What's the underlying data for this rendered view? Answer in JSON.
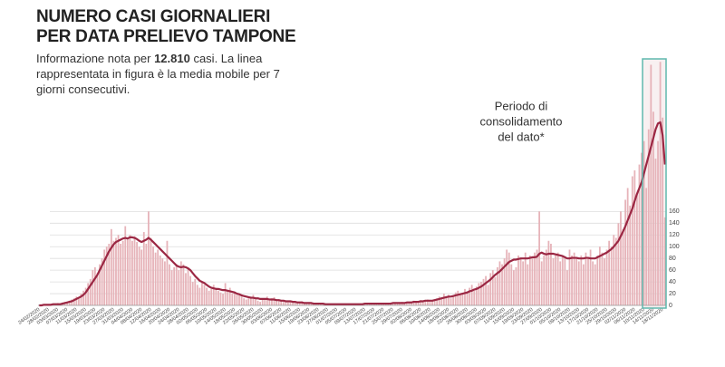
{
  "chart_data": {
    "type": "bar",
    "title": [
      "NUMERO CASI GIORNALIERI",
      "PER DATA PRELIEVO TAMPONE"
    ],
    "subtitle": {
      "before": "Informazione nota per ",
      "bold": "12.810",
      "after": " casi. La linea rappresentata in figura è la media mobile per 7 giorni consecutivi."
    },
    "annotation": [
      "Periodo di",
      "consolidamento",
      "del dato*"
    ],
    "categories": [
      "24/02/2020",
      null,
      null,
      null,
      "28/02/2020",
      null,
      null,
      null,
      "03/03/2020",
      null,
      null,
      null,
      "07/03/2020",
      null,
      null,
      null,
      "11/03/2020",
      null,
      null,
      null,
      "15/03/2020",
      null,
      null,
      null,
      "19/03/2020",
      null,
      null,
      null,
      "23/03/2020",
      null,
      null,
      null,
      "27/03/2020",
      null,
      null,
      null,
      "31/03/2020",
      null,
      null,
      null,
      "04/04/2020",
      null,
      null,
      null,
      "08/04/2020",
      null,
      null,
      null,
      "12/04/2020",
      null,
      null,
      null,
      "16/04/2020",
      null,
      null,
      null,
      "20/04/2020",
      null,
      null,
      null,
      "24/04/2020",
      null,
      null,
      null,
      "28/04/2020",
      null,
      null,
      null,
      "02/05/2020",
      null,
      null,
      null,
      "06/05/2020",
      null,
      null,
      null,
      "10/05/2020",
      null,
      null,
      null,
      "14/05/2020",
      null,
      null,
      null,
      "18/05/2020",
      null,
      null,
      null,
      "22/05/2020",
      null,
      null,
      null,
      "26/05/2020",
      null,
      null,
      null,
      "30/05/2020",
      null,
      null,
      null,
      "03/06/2020",
      null,
      null,
      null,
      "07/06/2020",
      null,
      null,
      null,
      "11/06/2020",
      null,
      null,
      null,
      "15/06/2020",
      null,
      null,
      null,
      "19/06/2020",
      null,
      null,
      null,
      "23/06/2020",
      null,
      null,
      null,
      "27/06/2020",
      null,
      null,
      null,
      "01/07/2020",
      null,
      null,
      null,
      "05/07/2020",
      null,
      null,
      null,
      "09/07/2020",
      null,
      null,
      null,
      "13/07/2020",
      null,
      null,
      null,
      "17/07/2020",
      null,
      null,
      null,
      "21/07/2020",
      null,
      null,
      null,
      "25/07/2020",
      null,
      null,
      null,
      "29/07/2020",
      null,
      null,
      null,
      "02/08/2020",
      null,
      null,
      null,
      "06/08/2020",
      null,
      null,
      null,
      "10/08/2020",
      null,
      null,
      null,
      "14/08/2020",
      null,
      null,
      null,
      "18/08/2020",
      null,
      null,
      null,
      "22/08/2020",
      null,
      null,
      null,
      "26/08/2020",
      null,
      null,
      null,
      "30/08/2020",
      null,
      null,
      null,
      "03/09/2020",
      null,
      null,
      null,
      "07/09/2020",
      null,
      null,
      null,
      "11/09/2020",
      null,
      null,
      null,
      "15/09/2020",
      null,
      null,
      null,
      "19/09/2020",
      null,
      null,
      null,
      "23/09/2020",
      null,
      null,
      null,
      "27/09/2020",
      null,
      null,
      null,
      "01/10/2020",
      null,
      null,
      null,
      "05/10/2020",
      null,
      null,
      null,
      "09/10/2020",
      null,
      null,
      null,
      "13/10/2020",
      null,
      null,
      null,
      "17/10/2020",
      null,
      null,
      null,
      "21/10/2020",
      null,
      null,
      null,
      "25/10/2020",
      null,
      null,
      null,
      "29/10/2020",
      null,
      null,
      null,
      "02/11/2020",
      null,
      null,
      null,
      "06/11/2020",
      null,
      null,
      null,
      "10/11/2020",
      null,
      null,
      null,
      "14/11/2020",
      null,
      null,
      null,
      "18/11/2020",
      null
    ],
    "values": [
      1,
      0,
      1,
      2,
      1,
      2,
      3,
      2,
      4,
      3,
      5,
      6,
      4,
      8,
      10,
      12,
      15,
      14,
      20,
      25,
      30,
      38,
      45,
      60,
      65,
      55,
      70,
      80,
      95,
      100,
      105,
      130,
      110,
      115,
      120,
      105,
      110,
      135,
      115,
      120,
      110,
      118,
      108,
      100,
      95,
      125,
      105,
      160,
      115,
      100,
      90,
      95,
      85,
      80,
      75,
      110,
      70,
      60,
      65,
      70,
      60,
      75,
      70,
      55,
      65,
      50,
      40,
      45,
      35,
      30,
      40,
      35,
      30,
      25,
      28,
      35,
      30,
      25,
      22,
      20,
      38,
      25,
      30,
      20,
      22,
      18,
      20,
      15,
      12,
      10,
      12,
      15,
      18,
      10,
      8,
      6,
      12,
      10,
      15,
      8,
      12,
      14,
      10,
      8,
      9,
      6,
      7,
      5,
      8,
      6,
      5,
      6,
      4,
      7,
      3,
      4,
      5,
      3,
      4,
      2,
      3,
      2,
      3,
      2,
      1,
      3,
      2,
      2,
      1,
      2,
      2,
      3,
      1,
      2,
      2,
      3,
      1,
      2,
      2,
      3,
      2,
      3,
      4,
      2,
      3,
      2,
      3,
      4,
      3,
      2,
      3,
      4,
      3,
      5,
      4,
      3,
      6,
      4,
      5,
      5,
      6,
      8,
      5,
      7,
      9,
      6,
      8,
      10,
      7,
      9,
      10,
      12,
      15,
      11,
      20,
      14,
      18,
      12,
      16,
      22,
      25,
      18,
      20,
      28,
      22,
      30,
      35,
      25,
      32,
      38,
      40,
      45,
      50,
      35,
      55,
      60,
      48,
      65,
      75,
      70,
      80,
      95,
      90,
      70,
      60,
      65,
      85,
      80,
      75,
      90,
      70,
      85,
      80,
      90,
      95,
      160,
      75,
      85,
      95,
      110,
      105,
      80,
      85,
      90,
      75,
      85,
      80,
      60,
      95,
      85,
      90,
      80,
      75,
      85,
      70,
      90,
      80,
      95,
      75,
      70,
      85,
      100,
      90,
      80,
      95,
      110,
      100,
      120,
      115,
      140,
      160,
      130,
      180,
      200,
      170,
      220,
      230,
      190,
      240,
      260,
      280,
      200,
      300,
      410,
      330,
      250,
      280,
      415,
      320,
      150
    ],
    "moving_average": [
      0,
      0,
      1,
      1,
      1,
      1,
      2,
      2,
      2,
      2,
      3,
      4,
      5,
      6,
      7,
      9,
      11,
      13,
      15,
      18,
      22,
      28,
      34,
      40,
      46,
      52,
      60,
      68,
      76,
      84,
      92,
      98,
      104,
      108,
      110,
      112,
      114,
      115,
      114,
      116,
      116,
      115,
      113,
      110,
      108,
      110,
      112,
      115,
      112,
      108,
      104,
      100,
      96,
      92,
      88,
      84,
      80,
      76,
      72,
      68,
      66,
      65,
      66,
      65,
      63,
      60,
      55,
      50,
      46,
      42,
      40,
      38,
      35,
      32,
      30,
      29,
      28,
      28,
      27,
      26,
      26,
      25,
      24,
      23,
      22,
      20,
      19,
      17,
      16,
      15,
      14,
      13,
      13,
      12,
      12,
      11,
      11,
      11,
      11,
      10,
      10,
      10,
      9,
      9,
      8,
      8,
      7,
      7,
      7,
      6,
      6,
      5,
      5,
      5,
      4,
      4,
      4,
      4,
      3,
      3,
      3,
      3,
      3,
      2,
      2,
      2,
      2,
      2,
      2,
      2,
      2,
      2,
      2,
      2,
      2,
      2,
      2,
      2,
      2,
      2,
      3,
      3,
      3,
      3,
      3,
      3,
      3,
      3,
      3,
      3,
      3,
      3,
      4,
      4,
      4,
      4,
      4,
      4,
      5,
      5,
      5,
      6,
      6,
      6,
      7,
      7,
      8,
      8,
      8,
      8,
      9,
      10,
      11,
      12,
      13,
      14,
      15,
      15,
      16,
      17,
      18,
      19,
      20,
      21,
      22,
      24,
      25,
      27,
      28,
      30,
      32,
      35,
      38,
      41,
      44,
      48,
      52,
      55,
      58,
      62,
      66,
      70,
      74,
      76,
      78,
      78,
      79,
      80,
      80,
      80,
      80,
      81,
      82,
      82,
      83,
      88,
      90,
      88,
      87,
      88,
      88,
      88,
      87,
      86,
      85,
      84,
      82,
      80,
      80,
      81,
      81,
      81,
      80,
      80,
      80,
      81,
      81,
      80,
      80,
      80,
      82,
      84,
      86,
      88,
      90,
      93,
      96,
      100,
      105,
      110,
      118,
      126,
      135,
      145,
      155,
      165,
      178,
      190,
      200,
      210,
      225,
      240,
      255,
      270,
      285,
      300,
      310,
      312,
      290,
      240
    ],
    "bar_color": "#e6b3b9",
    "line_color": "#9b2743",
    "ylim": [
      0,
      420
    ],
    "yticks": [
      0,
      20,
      40,
      60,
      80,
      100,
      120,
      140,
      160
    ],
    "grid": true
  }
}
